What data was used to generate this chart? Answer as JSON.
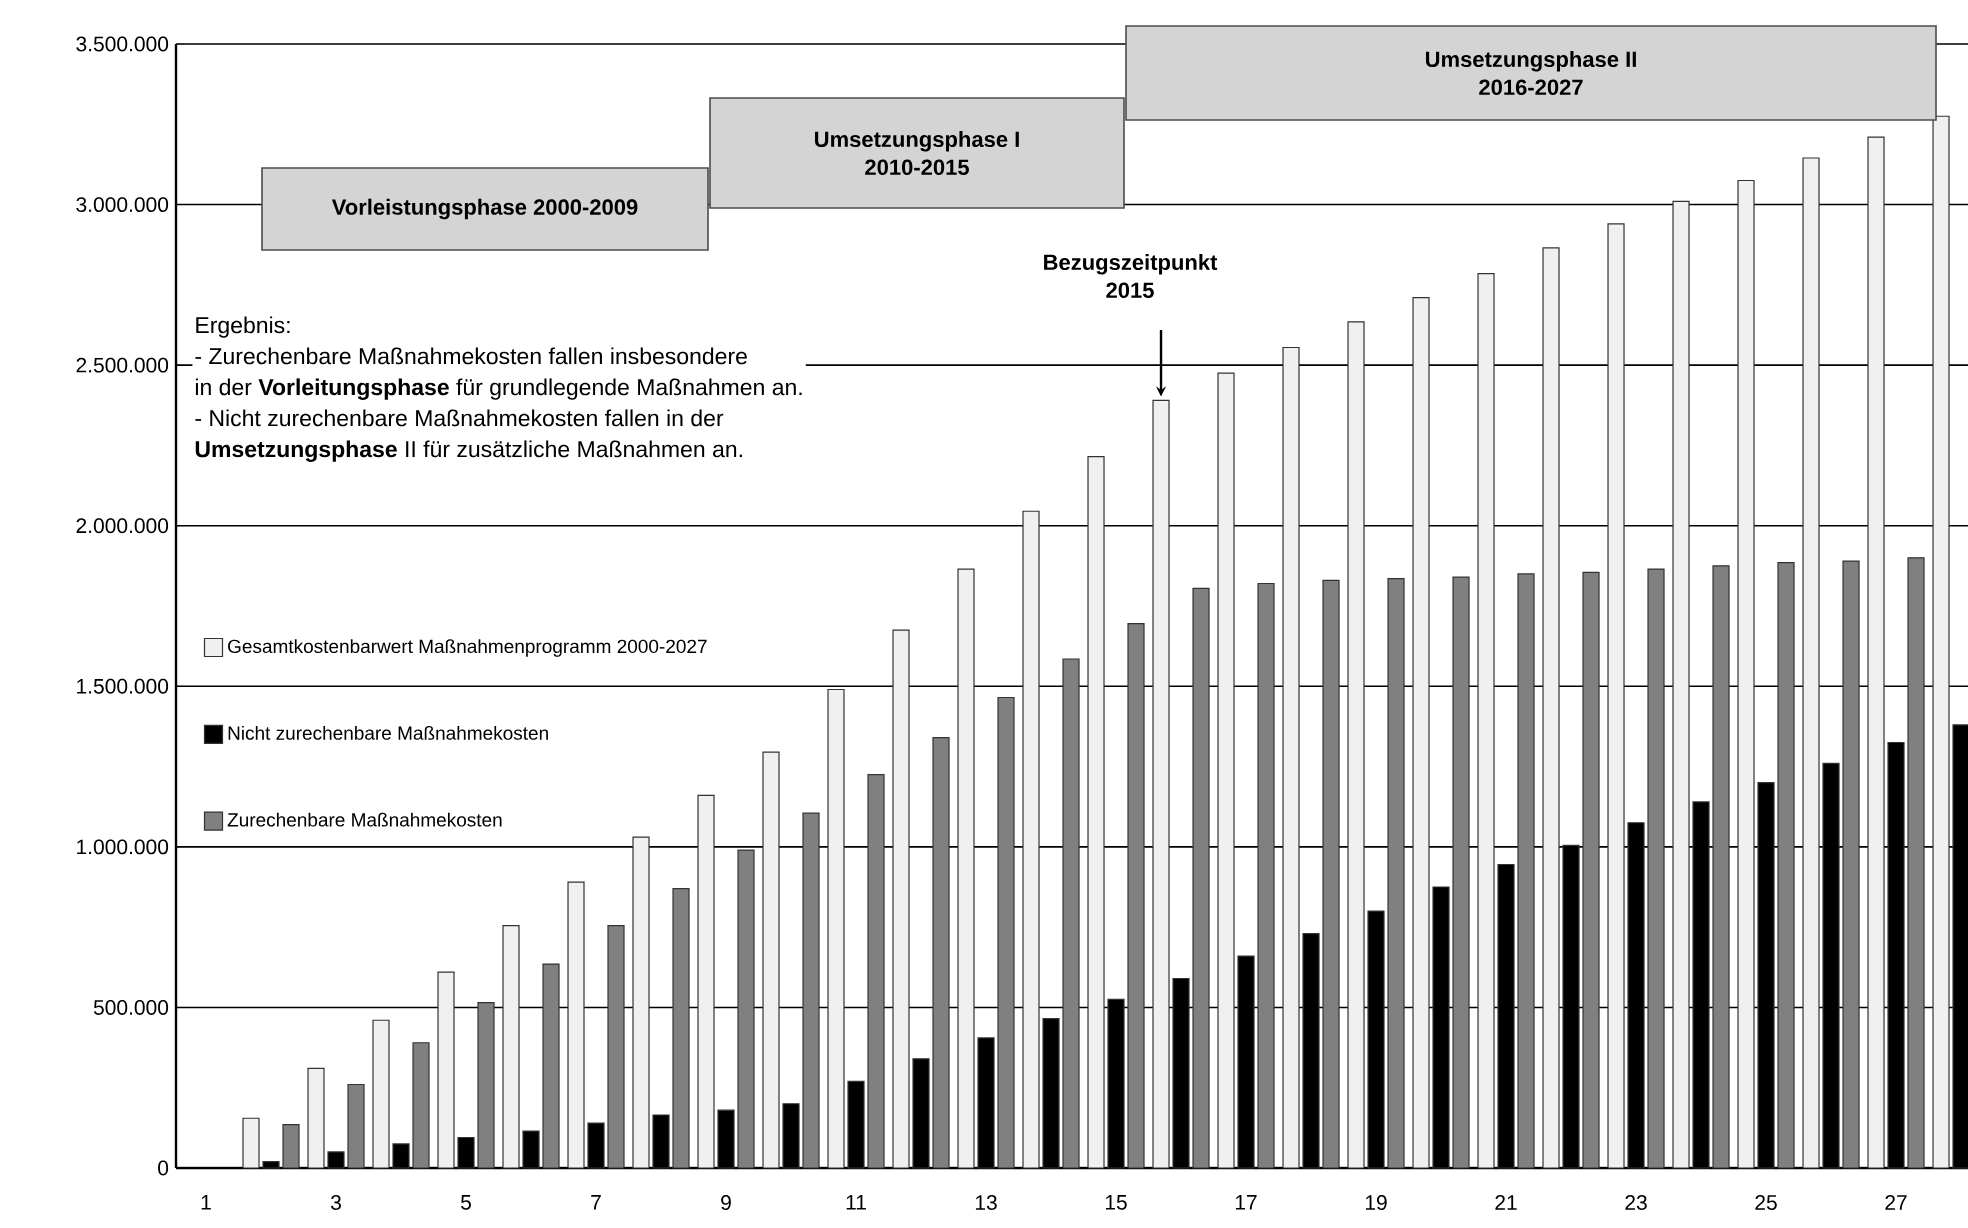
{
  "chart_data": {
    "type": "bar",
    "categories": [
      "1",
      null,
      "3",
      null,
      "5",
      null,
      "7",
      null,
      "9",
      null,
      "11",
      null,
      "13",
      null,
      "15",
      null,
      "17",
      null,
      "19",
      null,
      "21",
      null,
      "23",
      null,
      "25",
      null,
      "27",
      null
    ],
    "series": [
      {
        "name": "Gesamtkostenbarwert Maßnahmenprogramm 2000-2027",
        "color": "#f0f0f0",
        "values": [
          null,
          155000,
          310000,
          460000,
          610000,
          755000,
          890000,
          1030000,
          1160000,
          1295000,
          1490000,
          1675000,
          1865000,
          2045000,
          2215000,
          2390000,
          2475000,
          2555000,
          2635000,
          2710000,
          2785000,
          2865000,
          2940000,
          3010000,
          3075000,
          3145000,
          3210000,
          3275000
        ]
      },
      {
        "name": "Nicht zurechenbare Maßnahmekosten",
        "color": "#000000",
        "values": [
          null,
          20000,
          50000,
          75000,
          95000,
          115000,
          140000,
          165000,
          180000,
          200000,
          270000,
          340000,
          405000,
          465000,
          525000,
          590000,
          660000,
          730000,
          800000,
          875000,
          945000,
          1005000,
          1075000,
          1140000,
          1200000,
          1260000,
          1325000,
          1380000
        ]
      },
      {
        "name": "Zurechenbare Maßnahmekosten",
        "color": "#808080",
        "values": [
          null,
          135000,
          260000,
          390000,
          515000,
          635000,
          755000,
          870000,
          990000,
          1105000,
          1225000,
          1340000,
          1465000,
          1585000,
          1695000,
          1805000,
          1820000,
          1830000,
          1835000,
          1840000,
          1850000,
          1855000,
          1865000,
          1875000,
          1885000,
          1890000,
          1900000,
          null
        ]
      }
    ],
    "ylim": [
      0,
      3500000
    ],
    "yticks": [
      0,
      {
        "value": 500000,
        "label": "500.000"
      },
      {
        "value": 1000000,
        "label": "1.000.000"
      },
      {
        "value": 1500000,
        "label": "1.500.000"
      },
      {
        "value": 2000000,
        "label": "2.000.000"
      },
      {
        "value": 2500000,
        "label": "2.500.000"
      },
      {
        "value": 3000000,
        "label": "3.000.000"
      },
      {
        "value": 3500000,
        "label": "3.500.000"
      }
    ],
    "grid": "y",
    "legend": "left",
    "annotations": [
      "Vorleistungsphase 2000-2009",
      "Umsetzungsphase I",
      "2010-2015",
      "Umsetzungsphase II",
      "2016-2027",
      "Bezugszeitpunkt",
      "2015",
      "Ergebnis:",
      "- Zurechenbare Maßnahmekosten  fallen insbesondere",
      "in der **Vorleitungsphase** für grundlegende Maßnahmen an.",
      "- Nicht zurechenbare Maßnahmekosten fallen  in der",
      "**Umsetzungsphase** II für zusätzliche Maßnahmen an."
    ]
  }
}
